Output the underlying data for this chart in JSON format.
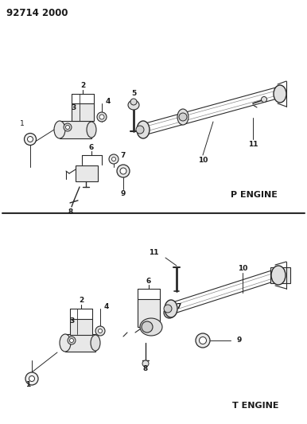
{
  "title": "92714 2000",
  "bg_color": "#ffffff",
  "line_color": "#2a2a2a",
  "text_color": "#1a1a1a",
  "p_engine_label": "P ENGINE",
  "t_engine_label": "T ENGINE",
  "fig_width": 3.86,
  "fig_height": 5.33,
  "dpi": 100
}
